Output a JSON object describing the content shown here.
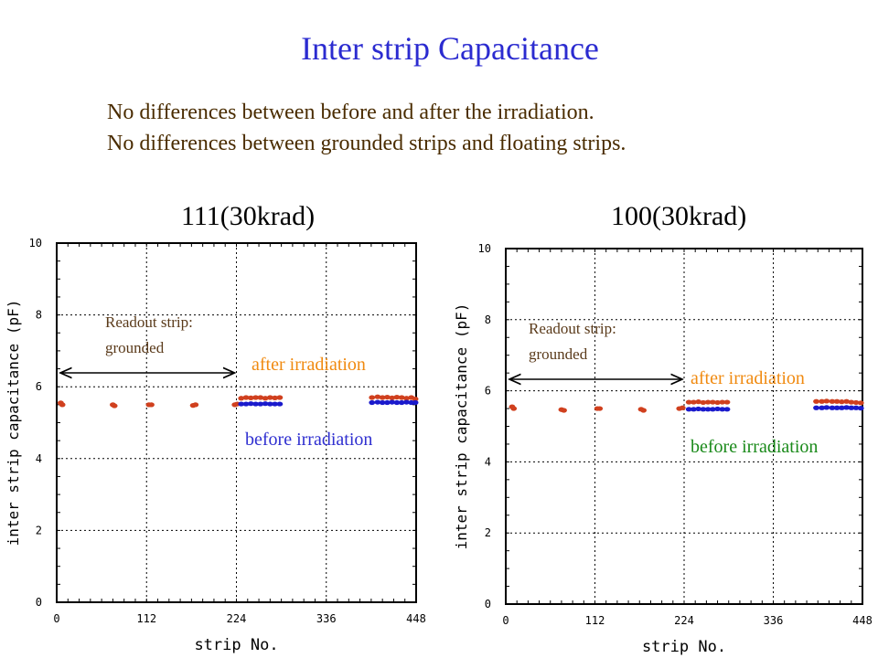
{
  "title": "Inter strip Capacitance",
  "notes": [
    "No differences between before and after the irradiation.",
    "No differences between grounded strips and floating strips."
  ],
  "chart_data": [
    {
      "type": "scatter",
      "title": "111(30krad)",
      "xlabel": "strip No.",
      "ylabel": "inter strip capacitance (pF)",
      "xlim": [
        0,
        448
      ],
      "ylim": [
        0,
        10
      ],
      "xticks": [
        "0",
        "112",
        "224",
        "336",
        "448"
      ],
      "yticks": [
        "0",
        "2",
        "4",
        "6",
        "8",
        "10"
      ],
      "grid": true,
      "annotation": "Readout strip:\ngrounded",
      "arrow_range": [
        0,
        224
      ],
      "series": [
        {
          "name": "after irradiation",
          "color": "#d0401e",
          "label_color": "#f08a10",
          "points": [
            [
              5,
              5.55
            ],
            [
              7,
              5.5
            ],
            [
              70,
              5.5
            ],
            [
              72,
              5.47
            ],
            [
              115,
              5.5
            ],
            [
              118,
              5.5
            ],
            [
              170,
              5.48
            ],
            [
              173,
              5.5
            ],
            [
              222,
              5.5
            ],
            [
              225,
              5.52
            ],
            [
              230,
              5.68
            ],
            [
              236,
              5.7
            ],
            [
              242,
              5.69
            ],
            [
              248,
              5.7
            ],
            [
              254,
              5.7
            ],
            [
              260,
              5.68
            ],
            [
              266,
              5.7
            ],
            [
              272,
              5.69
            ],
            [
              278,
              5.7
            ],
            [
              393,
              5.7
            ],
            [
              400,
              5.72
            ],
            [
              406,
              5.7
            ],
            [
              412,
              5.71
            ],
            [
              418,
              5.69
            ],
            [
              424,
              5.71
            ],
            [
              430,
              5.7
            ],
            [
              436,
              5.68
            ],
            [
              442,
              5.7
            ],
            [
              447,
              5.66
            ]
          ]
        },
        {
          "name": "before irradiation",
          "color": "#1a1acc",
          "label_color": "#2f2fd0",
          "points": [
            [
              230,
              5.52
            ],
            [
              236,
              5.52
            ],
            [
              242,
              5.53
            ],
            [
              248,
              5.52
            ],
            [
              254,
              5.52
            ],
            [
              260,
              5.53
            ],
            [
              266,
              5.52
            ],
            [
              272,
              5.52
            ],
            [
              278,
              5.52
            ],
            [
              393,
              5.56
            ],
            [
              400,
              5.57
            ],
            [
              406,
              5.56
            ],
            [
              412,
              5.56
            ],
            [
              418,
              5.57
            ],
            [
              424,
              5.56
            ],
            [
              430,
              5.56
            ],
            [
              436,
              5.57
            ],
            [
              442,
              5.56
            ],
            [
              447,
              5.56
            ]
          ]
        }
      ]
    },
    {
      "type": "scatter",
      "title": "100(30krad)",
      "xlabel": "strip No.",
      "ylabel": "inter strip capacitance (pF)",
      "xlim": [
        0,
        448
      ],
      "ylim": [
        0,
        10
      ],
      "xticks": [
        "0",
        "112",
        "224",
        "336",
        "448"
      ],
      "yticks": [
        "0",
        "2",
        "4",
        "6",
        "8",
        "10"
      ],
      "grid": true,
      "annotation": "Readout strip:\ngrounded",
      "arrow_range": [
        0,
        224
      ],
      "series": [
        {
          "name": "after irradiation",
          "color": "#d0401e",
          "label_color": "#f08a10",
          "points": [
            [
              8,
              5.55
            ],
            [
              10,
              5.5
            ],
            [
              70,
              5.47
            ],
            [
              73,
              5.45
            ],
            [
              115,
              5.5
            ],
            [
              118,
              5.5
            ],
            [
              170,
              5.48
            ],
            [
              173,
              5.45
            ],
            [
              218,
              5.5
            ],
            [
              222,
              5.52
            ],
            [
              230,
              5.68
            ],
            [
              236,
              5.68
            ],
            [
              242,
              5.69
            ],
            [
              248,
              5.67
            ],
            [
              254,
              5.68
            ],
            [
              260,
              5.68
            ],
            [
              266,
              5.67
            ],
            [
              272,
              5.68
            ],
            [
              278,
              5.68
            ],
            [
              390,
              5.7
            ],
            [
              397,
              5.7
            ],
            [
              403,
              5.71
            ],
            [
              410,
              5.7
            ],
            [
              416,
              5.7
            ],
            [
              422,
              5.69
            ],
            [
              428,
              5.7
            ],
            [
              434,
              5.68
            ],
            [
              440,
              5.67
            ],
            [
              446,
              5.66
            ]
          ]
        },
        {
          "name": "before irradiation",
          "color": "#1a1acc",
          "label_color": "#1a8a1a",
          "points": [
            [
              230,
              5.48
            ],
            [
              236,
              5.48
            ],
            [
              242,
              5.49
            ],
            [
              248,
              5.48
            ],
            [
              254,
              5.48
            ],
            [
              260,
              5.48
            ],
            [
              266,
              5.49
            ],
            [
              272,
              5.48
            ],
            [
              278,
              5.48
            ],
            [
              390,
              5.52
            ],
            [
              397,
              5.52
            ],
            [
              403,
              5.53
            ],
            [
              410,
              5.52
            ],
            [
              416,
              5.52
            ],
            [
              422,
              5.52
            ],
            [
              428,
              5.53
            ],
            [
              434,
              5.52
            ],
            [
              440,
              5.52
            ],
            [
              446,
              5.51
            ]
          ]
        }
      ]
    }
  ]
}
